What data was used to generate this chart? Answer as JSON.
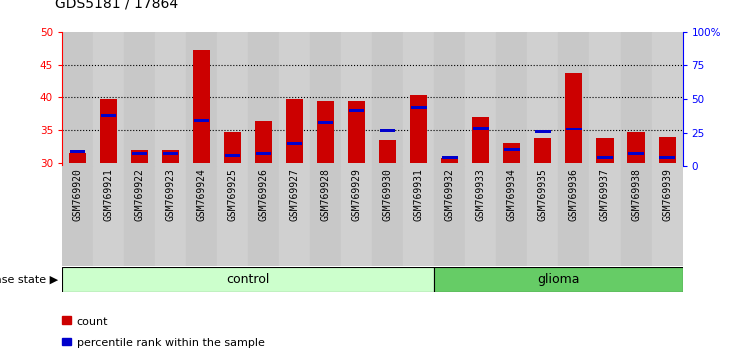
{
  "title": "GDS5181 / 17864",
  "samples": [
    "GSM769920",
    "GSM769921",
    "GSM769922",
    "GSM769923",
    "GSM769924",
    "GSM769925",
    "GSM769926",
    "GSM769927",
    "GSM769928",
    "GSM769929",
    "GSM769930",
    "GSM769931",
    "GSM769932",
    "GSM769933",
    "GSM769934",
    "GSM769935",
    "GSM769936",
    "GSM769937",
    "GSM769938",
    "GSM769939"
  ],
  "count_values": [
    31.5,
    39.8,
    32.0,
    32.0,
    47.3,
    34.8,
    36.4,
    39.8,
    39.5,
    39.5,
    33.5,
    40.4,
    30.8,
    37.0,
    33.0,
    33.8,
    43.8,
    33.8,
    34.7,
    34.0
  ],
  "percentile_values": [
    31.8,
    37.2,
    31.5,
    31.5,
    36.5,
    31.2,
    31.5,
    33.0,
    36.2,
    38.0,
    35.0,
    38.5,
    30.8,
    35.3,
    32.0,
    34.8,
    35.2,
    30.8,
    31.5,
    30.8
  ],
  "bar_color": "#cc0000",
  "blue_color": "#0000cc",
  "ylim_left": [
    29.5,
    50
  ],
  "ylim_right": [
    0,
    100
  ],
  "yticks_left": [
    30,
    35,
    40,
    45,
    50
  ],
  "yticks_right": [
    0,
    25,
    50,
    75,
    100
  ],
  "ytick_labels_right": [
    "0",
    "25",
    "50",
    "75",
    "100%"
  ],
  "control_count": 12,
  "glioma_count": 8,
  "control_label": "control",
  "glioma_label": "glioma",
  "disease_state_label": "disease state",
  "legend_count_label": "count",
  "legend_pct_label": "percentile rank within the sample",
  "control_color": "#ccffcc",
  "glioma_color": "#66cc66",
  "bar_width": 0.55,
  "baseline": 30.0,
  "plot_bg": "#d8d8d8",
  "grid_color": "#000000",
  "title_fontsize": 10,
  "tick_fontsize": 7.5,
  "label_fontsize": 8
}
